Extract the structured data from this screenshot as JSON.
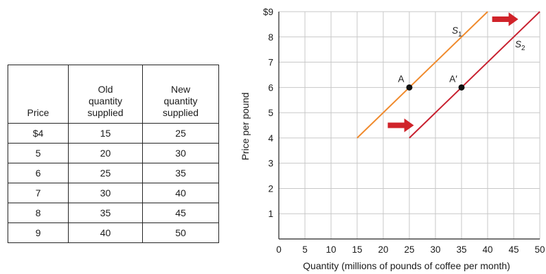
{
  "table": {
    "headers": [
      "Price",
      "Old\nquantity\nsupplied",
      "New\nquantity\nsupplied"
    ],
    "rows": [
      [
        "$4",
        "15",
        "25"
      ],
      [
        "5",
        "20",
        "30"
      ],
      [
        "6",
        "25",
        "35"
      ],
      [
        "7",
        "30",
        "40"
      ],
      [
        "8",
        "35",
        "45"
      ],
      [
        "9",
        "40",
        "50"
      ]
    ]
  },
  "chart_data": {
    "type": "line",
    "xlabel": "Quantity (millions of pounds of coffee per month)",
    "ylabel": "Price per pound",
    "xlim": [
      0,
      50
    ],
    "ylim": [
      0,
      9
    ],
    "x_ticks": [
      0,
      5,
      10,
      15,
      20,
      25,
      30,
      35,
      40,
      45,
      50
    ],
    "y_ticks": [
      1,
      2,
      3,
      4,
      5,
      6,
      7,
      8,
      9
    ],
    "y_tick_labels": [
      "1",
      "2",
      "3",
      "4",
      "5",
      "6",
      "7",
      "8",
      "$9"
    ],
    "grid": true,
    "series": [
      {
        "name": "S",
        "sub": "1",
        "color": "#f08a2c",
        "points": [
          [
            15,
            4
          ],
          [
            40,
            9
          ]
        ]
      },
      {
        "name": "S",
        "sub": "2",
        "color": "#c8202f",
        "points": [
          [
            25,
            4
          ],
          [
            50,
            9
          ]
        ]
      }
    ],
    "points": [
      {
        "label": "A",
        "x": 25,
        "y": 6
      },
      {
        "label": "A′",
        "x": 35,
        "y": 6
      }
    ],
    "arrow_color": "#d0232a",
    "grid_color": "#c7c7c7"
  }
}
